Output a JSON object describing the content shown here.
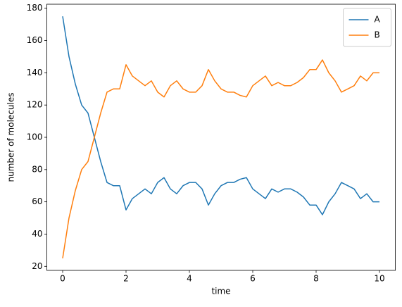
{
  "chart_data": {
    "type": "line",
    "xlabel": "time",
    "ylabel": "number of molecules",
    "x": [
      0,
      0.2,
      0.4,
      0.6,
      0.8,
      1.0,
      1.2,
      1.4,
      1.6,
      1.8,
      2.0,
      2.2,
      2.4,
      2.6,
      2.8,
      3.0,
      3.2,
      3.4,
      3.6,
      3.8,
      4.0,
      4.2,
      4.4,
      4.6,
      4.8,
      5.0,
      5.2,
      5.4,
      5.6,
      5.8,
      6.0,
      6.2,
      6.4,
      6.6,
      6.8,
      7.0,
      7.2,
      7.4,
      7.6,
      7.8,
      8.0,
      8.2,
      8.4,
      8.6,
      8.8,
      9.0,
      9.2,
      9.4,
      9.6,
      9.8,
      10.0
    ],
    "series": [
      {
        "name": "A",
        "color": "#1f77b4",
        "values": [
          175,
          150,
          133,
          120,
          115,
          100,
          85,
          72,
          70,
          70,
          55,
          62,
          65,
          68,
          65,
          72,
          75,
          68,
          65,
          70,
          72,
          72,
          68,
          58,
          65,
          70,
          72,
          72,
          74,
          75,
          68,
          65,
          62,
          68,
          66,
          68,
          68,
          66,
          63,
          58,
          58,
          52,
          60,
          65,
          72,
          70,
          68,
          62,
          65,
          60,
          60
        ]
      },
      {
        "name": "B",
        "color": "#ff7f0e",
        "values": [
          25,
          50,
          67,
          80,
          85,
          100,
          115,
          128,
          130,
          130,
          145,
          138,
          135,
          132,
          135,
          128,
          125,
          132,
          135,
          130,
          128,
          128,
          132,
          142,
          135,
          130,
          128,
          128,
          126,
          125,
          132,
          135,
          138,
          132,
          134,
          132,
          132,
          134,
          137,
          142,
          142,
          148,
          140,
          135,
          128,
          130,
          132,
          138,
          135,
          140,
          140
        ]
      }
    ],
    "xlim": [
      -0.5,
      10.5
    ],
    "ylim": [
      17.5,
      182.5
    ],
    "xticks": [
      0,
      2,
      4,
      6,
      8,
      10
    ],
    "yticks": [
      20,
      40,
      60,
      80,
      100,
      120,
      140,
      160,
      180
    ],
    "legend": "upper right"
  }
}
